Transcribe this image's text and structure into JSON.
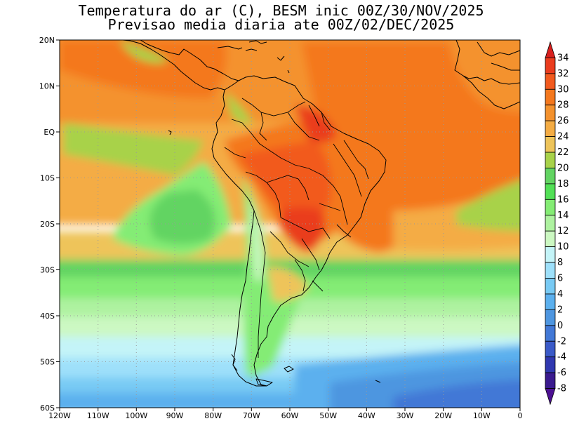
{
  "title": {
    "line1": "Temperatura do ar (C), BESM inic 00Z/30/NOV/2025",
    "line2": "Previsao media diaria ate 00Z/02/DEC/2025"
  },
  "map": {
    "lon_range": [
      -120,
      0
    ],
    "lat_range": [
      -60,
      20
    ],
    "lat_labels": [
      "20N",
      "10N",
      "EQ",
      "10S",
      "20S",
      "30S",
      "40S",
      "50S",
      "60S"
    ],
    "lon_labels": [
      "120W",
      "110W",
      "100W",
      "90W",
      "80W",
      "70W",
      "60W",
      "50W",
      "40W",
      "30W",
      "20W",
      "10W",
      "0"
    ],
    "gridlines": "dotted"
  },
  "colorbar": {
    "labels": [
      "34",
      "32",
      "30",
      "28",
      "26",
      "24",
      "22",
      "20",
      "18",
      "16",
      "14",
      "12",
      "10",
      "8",
      "6",
      "4",
      "2",
      "0",
      "-2",
      "-4",
      "-6",
      "-8"
    ],
    "colors": [
      "#d8201e",
      "#ea3c1e",
      "#f25a1e",
      "#f4781e",
      "#f4922e",
      "#f4ac44",
      "#eec45a",
      "#a8d24a",
      "#62d462",
      "#52e056",
      "#84ec74",
      "#aef2a0",
      "#ccf8c2",
      "#c4f4f8",
      "#9ee0fa",
      "#78caf4",
      "#5cb0ee",
      "#4e96e0",
      "#4278d6",
      "#3a5ac8",
      "#3038b0",
      "#3a1a8e",
      "#4c1092"
    ],
    "unit": "C"
  }
}
